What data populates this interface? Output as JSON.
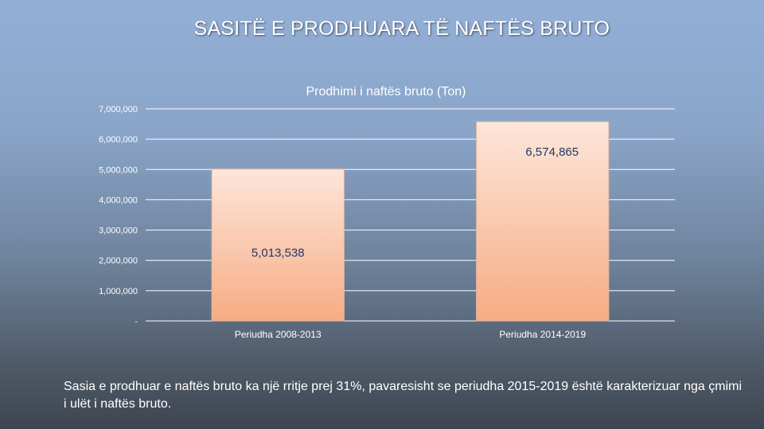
{
  "slide": {
    "title": "SASITË E PRODHUARA TË NAFTËS BRUTO",
    "caption": "Sasia e prodhuar e naftës bruto ka një rritje prej 31%, pavaresisht se periudha 2015-2019 është karakterizuar nga çmimi i ulët i naftës bruto."
  },
  "chart_data": {
    "type": "bar",
    "title": "Prodhimi i naftës bruto (Ton)",
    "xlabel": "",
    "ylabel": "",
    "categories": [
      "Periudha 2008-2013",
      "Periudha 2014-2019"
    ],
    "values": [
      5013538,
      6574865
    ],
    "data_labels": [
      "5,013,538",
      "6,574,865"
    ],
    "ylim": [
      0,
      7000000
    ],
    "yticks": [
      0,
      1000000,
      2000000,
      3000000,
      4000000,
      5000000,
      6000000,
      7000000
    ],
    "ytick_labels": [
      "-",
      "1,000,000",
      "2,000,000",
      "3,000,000",
      "4,000,000",
      "5,000,000",
      "6,000,000",
      "7,000,000"
    ],
    "grid": true,
    "legend": "none",
    "colors": {
      "bar_top": "#fde6da",
      "bar_bottom": "#f6ac84",
      "bar_edge": "#e6b49a",
      "data_label": "#1f3a68",
      "grid": "#ffffff"
    }
  }
}
